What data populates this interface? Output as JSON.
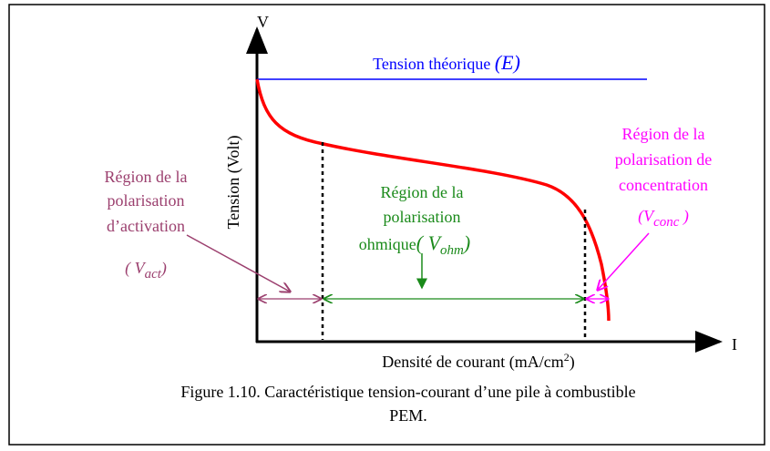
{
  "axes": {
    "y_symbol": "V",
    "x_symbol": "I",
    "y_label": "Tension (Volt)",
    "x_label": {
      "text": "Densité de courant (mA/cm",
      "sup": "2",
      "close": ")"
    }
  },
  "theoretical": {
    "text": "Tension théorique ",
    "symbol": "(E)"
  },
  "regions": [
    {
      "lines": [
        "Région de la",
        "polarisation",
        "d’activation"
      ],
      "symbol": {
        "open": "( V",
        "sub": "act",
        "close": ")"
      }
    },
    {
      "lines": [
        "Région de la",
        "polarisation",
        "ohmique"
      ],
      "symbol": {
        "open": "( V",
        "sub": "ohm",
        "close": ")"
      }
    },
    {
      "lines": [
        "Région de la",
        "polarisation de",
        "concentration"
      ],
      "symbol": {
        "open": "(V",
        "sub": "conc",
        "close": " )"
      }
    }
  ],
  "caption": [
    "Figure 1.10. Caractéristique tension-courant d’une pile à combustible",
    "PEM."
  ]
}
